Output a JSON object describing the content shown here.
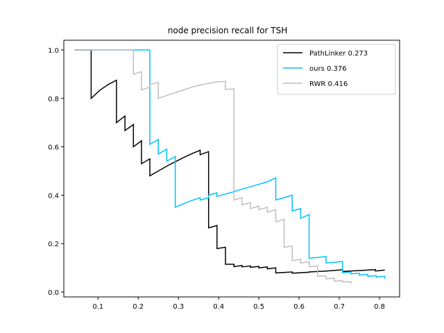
{
  "chart_data": {
    "type": "line",
    "title": "node precision recall for TSH",
    "xlabel": "",
    "ylabel": "",
    "xlim": [
      0.015,
      0.85
    ],
    "ylim": [
      -0.02,
      1.04
    ],
    "xticks": [
      0.1,
      0.2,
      0.3,
      0.4,
      0.5,
      0.6,
      0.7,
      0.8
    ],
    "xtick_labels": [
      "0.1",
      "0.2",
      "0.3",
      "0.4",
      "0.5",
      "0.6",
      "0.7",
      "0.8"
    ],
    "yticks": [
      0.0,
      0.2,
      0.4,
      0.6,
      0.8,
      1.0
    ],
    "ytick_labels": [
      "0.0",
      "0.2",
      "0.4",
      "0.6",
      "0.8",
      "1.0"
    ],
    "grid": false,
    "legend_position": "upper right",
    "series": [
      {
        "name": "PathLinker 0.273",
        "color": "#000000",
        "points": [
          [
            0.042,
            1.0
          ],
          [
            0.083,
            1.0
          ],
          [
            0.083,
            0.8
          ],
          [
            0.104,
            0.833
          ],
          [
            0.125,
            0.857
          ],
          [
            0.146,
            0.875
          ],
          [
            0.146,
            0.7
          ],
          [
            0.167,
            0.727
          ],
          [
            0.167,
            0.667
          ],
          [
            0.188,
            0.692
          ],
          [
            0.188,
            0.6
          ],
          [
            0.208,
            0.625
          ],
          [
            0.208,
            0.53
          ],
          [
            0.229,
            0.55
          ],
          [
            0.229,
            0.48
          ],
          [
            0.25,
            0.5
          ],
          [
            0.271,
            0.52
          ],
          [
            0.292,
            0.538
          ],
          [
            0.312,
            0.555
          ],
          [
            0.333,
            0.571
          ],
          [
            0.354,
            0.586
          ],
          [
            0.354,
            0.567
          ],
          [
            0.375,
            0.58
          ],
          [
            0.375,
            0.265
          ],
          [
            0.396,
            0.275
          ],
          [
            0.396,
            0.18
          ],
          [
            0.417,
            0.185
          ],
          [
            0.417,
            0.115
          ],
          [
            0.438,
            0.115
          ],
          [
            0.438,
            0.105
          ],
          [
            0.458,
            0.11
          ],
          [
            0.458,
            0.104
          ],
          [
            0.479,
            0.108
          ],
          [
            0.479,
            0.102
          ],
          [
            0.5,
            0.106
          ],
          [
            0.5,
            0.1
          ],
          [
            0.521,
            0.104
          ],
          [
            0.521,
            0.096
          ],
          [
            0.542,
            0.1
          ],
          [
            0.542,
            0.079
          ],
          [
            0.583,
            0.083
          ],
          [
            0.583,
            0.078
          ],
          [
            0.625,
            0.082
          ],
          [
            0.625,
            0.083
          ],
          [
            0.667,
            0.087
          ],
          [
            0.708,
            0.092
          ],
          [
            0.708,
            0.085
          ],
          [
            0.75,
            0.089
          ],
          [
            0.79,
            0.093
          ],
          [
            0.79,
            0.087
          ],
          [
            0.813,
            0.091
          ]
        ]
      },
      {
        "name": "ours 0.376",
        "color": "#00bfff",
        "points": [
          [
            0.042,
            1.0
          ],
          [
            0.229,
            1.0
          ],
          [
            0.229,
            0.61
          ],
          [
            0.25,
            0.63
          ],
          [
            0.25,
            0.57
          ],
          [
            0.271,
            0.59
          ],
          [
            0.271,
            0.54
          ],
          [
            0.292,
            0.56
          ],
          [
            0.292,
            0.35
          ],
          [
            0.313,
            0.365
          ],
          [
            0.333,
            0.378
          ],
          [
            0.354,
            0.39
          ],
          [
            0.354,
            0.38
          ],
          [
            0.375,
            0.39
          ],
          [
            0.375,
            0.4
          ],
          [
            0.396,
            0.41
          ],
          [
            0.396,
            0.395
          ],
          [
            0.417,
            0.405
          ],
          [
            0.438,
            0.415
          ],
          [
            0.458,
            0.425
          ],
          [
            0.479,
            0.435
          ],
          [
            0.5,
            0.445
          ],
          [
            0.521,
            0.455
          ],
          [
            0.542,
            0.472
          ],
          [
            0.542,
            0.38
          ],
          [
            0.563,
            0.39
          ],
          [
            0.583,
            0.4
          ],
          [
            0.583,
            0.335
          ],
          [
            0.604,
            0.345
          ],
          [
            0.604,
            0.305
          ],
          [
            0.625,
            0.32
          ],
          [
            0.625,
            0.14
          ],
          [
            0.646,
            0.143
          ],
          [
            0.667,
            0.147
          ],
          [
            0.667,
            0.12
          ],
          [
            0.688,
            0.123
          ],
          [
            0.708,
            0.127
          ],
          [
            0.708,
            0.08
          ],
          [
            0.729,
            0.083
          ],
          [
            0.729,
            0.075
          ],
          [
            0.75,
            0.078
          ],
          [
            0.75,
            0.07
          ],
          [
            0.771,
            0.073
          ],
          [
            0.771,
            0.065
          ],
          [
            0.792,
            0.068
          ],
          [
            0.792,
            0.062
          ],
          [
            0.813,
            0.065
          ],
          [
            0.813,
            0.055
          ]
        ]
      },
      {
        "name": "RWR 0.416",
        "color": "#bfbfbf",
        "points": [
          [
            0.042,
            1.0
          ],
          [
            0.188,
            1.0
          ],
          [
            0.188,
            0.9
          ],
          [
            0.208,
            0.91
          ],
          [
            0.208,
            0.835
          ],
          [
            0.229,
            0.846
          ],
          [
            0.229,
            0.857
          ],
          [
            0.25,
            0.866
          ],
          [
            0.25,
            0.8
          ],
          [
            0.271,
            0.812
          ],
          [
            0.292,
            0.824
          ],
          [
            0.313,
            0.835
          ],
          [
            0.333,
            0.846
          ],
          [
            0.354,
            0.855
          ],
          [
            0.375,
            0.862
          ],
          [
            0.396,
            0.868
          ],
          [
            0.417,
            0.87
          ],
          [
            0.417,
            0.836
          ],
          [
            0.438,
            0.84
          ],
          [
            0.438,
            0.38
          ],
          [
            0.458,
            0.39
          ],
          [
            0.458,
            0.36
          ],
          [
            0.479,
            0.37
          ],
          [
            0.479,
            0.345
          ],
          [
            0.5,
            0.355
          ],
          [
            0.5,
            0.34
          ],
          [
            0.521,
            0.35
          ],
          [
            0.521,
            0.33
          ],
          [
            0.542,
            0.34
          ],
          [
            0.542,
            0.29
          ],
          [
            0.563,
            0.3
          ],
          [
            0.563,
            0.185
          ],
          [
            0.583,
            0.19
          ],
          [
            0.583,
            0.13
          ],
          [
            0.604,
            0.135
          ],
          [
            0.604,
            0.12
          ],
          [
            0.625,
            0.125
          ],
          [
            0.625,
            0.105
          ],
          [
            0.646,
            0.108
          ],
          [
            0.646,
            0.065
          ],
          [
            0.667,
            0.067
          ],
          [
            0.667,
            0.055
          ],
          [
            0.688,
            0.057
          ],
          [
            0.688,
            0.045
          ],
          [
            0.708,
            0.047
          ],
          [
            0.708,
            0.042
          ],
          [
            0.729,
            0.043
          ],
          [
            0.729,
            0.035
          ]
        ]
      }
    ]
  }
}
